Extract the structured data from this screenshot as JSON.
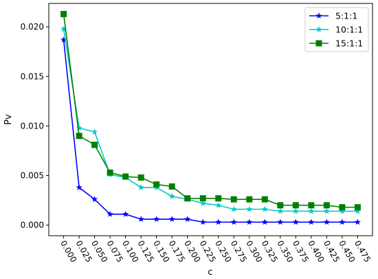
{
  "chart_data": {
    "type": "line",
    "xlabel": "c",
    "ylabel": "Pv",
    "x": [
      0.0,
      0.025,
      0.05,
      0.075,
      0.1,
      0.125,
      0.15,
      0.175,
      0.2,
      0.225,
      0.25,
      0.275,
      0.3,
      0.325,
      0.35,
      0.375,
      0.4,
      0.425,
      0.45,
      0.475
    ],
    "x_tick_labels": [
      "0.000",
      "0.025",
      "0.050",
      "0.075",
      "0.100",
      "0.125",
      "0.150",
      "0.175",
      "0.200",
      "0.225",
      "0.250",
      "0.275",
      "0.300",
      "0.325",
      "0.350",
      "0.375",
      "0.400",
      "0.425",
      "0.450",
      "0.475"
    ],
    "y_ticks": [
      0.0,
      0.005,
      0.01,
      0.015,
      0.02
    ],
    "y_tick_labels": [
      "0.000",
      "0.005",
      "0.010",
      "0.015",
      "0.020"
    ],
    "xlim": [
      -0.024,
      0.499
    ],
    "ylim": [
      -0.00107,
      0.02237
    ],
    "grid": false,
    "legend_position": "top-right",
    "series": [
      {
        "name": "5:1:1",
        "color": "#0000ff",
        "marker": "star",
        "values": [
          0.0187,
          0.0038,
          0.0026,
          0.0011,
          0.0011,
          0.0006,
          0.0006,
          0.0006,
          0.0006,
          0.0003,
          0.0003,
          0.0003,
          0.0003,
          0.0003,
          0.0003,
          0.0003,
          0.0003,
          0.0003,
          0.0003,
          0.0003
        ]
      },
      {
        "name": "10:1:1",
        "color": "#00c8c8",
        "marker": "star",
        "values": [
          0.0198,
          0.0098,
          0.0094,
          0.0051,
          0.0048,
          0.0038,
          0.0038,
          0.0029,
          0.0026,
          0.0022,
          0.002,
          0.0016,
          0.0016,
          0.0016,
          0.0014,
          0.0014,
          0.0014,
          0.0014,
          0.0014,
          0.0014
        ]
      },
      {
        "name": "15:1:1",
        "color": "#008000",
        "marker": "square",
        "values": [
          0.0213,
          0.009,
          0.0081,
          0.0053,
          0.0049,
          0.0048,
          0.0041,
          0.0039,
          0.0027,
          0.0027,
          0.0027,
          0.0026,
          0.0026,
          0.0026,
          0.002,
          0.002,
          0.002,
          0.002,
          0.0018,
          0.0018
        ]
      }
    ]
  }
}
